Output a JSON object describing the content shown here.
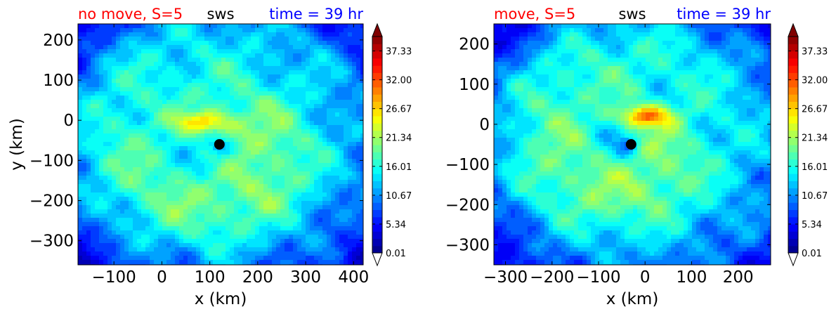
{
  "chart_data": [
    {
      "type": "heatmap",
      "title_left": "no move, S=5",
      "title_center": "sws",
      "title_right": "time = 39 hr",
      "xlabel": "x (km)",
      "ylabel": "y (km)",
      "xlim": [
        -175,
        420
      ],
      "ylim": [
        -360,
        240
      ],
      "xticks": [
        -100,
        0,
        100,
        200,
        300,
        400
      ],
      "xtick_labels": [
        "−100",
        "0",
        "100",
        "200",
        "300",
        "400"
      ],
      "yticks": [
        200,
        100,
        0,
        -100,
        -200,
        -300
      ],
      "ytick_labels": [
        "200",
        "100",
        "0",
        "−100",
        "−200",
        "−300"
      ],
      "center": {
        "x": 120,
        "y": -60
      },
      "max_center": {
        "x": 85,
        "y": -5
      },
      "peak_value": 30,
      "colorbar_ticks": [
        "37.33",
        "32.00",
        "26.67",
        "21.34",
        "16.01",
        "10.67",
        "5.34",
        "0.01"
      ]
    },
    {
      "type": "heatmap",
      "title_left": "move, S=5",
      "title_center": "sws",
      "title_right": "time = 39 hr",
      "xlabel": "x (km)",
      "ylabel": "",
      "xlim": [
        -325,
        270
      ],
      "ylim": [
        -350,
        250
      ],
      "xticks": [
        -300,
        -200,
        -100,
        0,
        100,
        200
      ],
      "xtick_labels": [
        "−300",
        "−200",
        "−100",
        "0",
        "100",
        "200"
      ],
      "yticks": [
        200,
        100,
        0,
        -100,
        -200,
        -300
      ],
      "ytick_labels": [
        "200",
        "100",
        "0",
        "−100",
        "−200",
        "−300"
      ],
      "center": {
        "x": -30,
        "y": -50
      },
      "max_center": {
        "x": 0,
        "y": 20
      },
      "peak_value": 34,
      "colorbar_ticks": [
        "37.33",
        "32.00",
        "26.67",
        "21.34",
        "16.01",
        "10.67",
        "5.34",
        "0.01"
      ]
    }
  ],
  "colorbar": {
    "min": 0.01,
    "max": 40,
    "levels": 30
  },
  "colors": {
    "title_left": "#ff0000",
    "title_center": "#000000",
    "title_right": "#0000ff"
  }
}
